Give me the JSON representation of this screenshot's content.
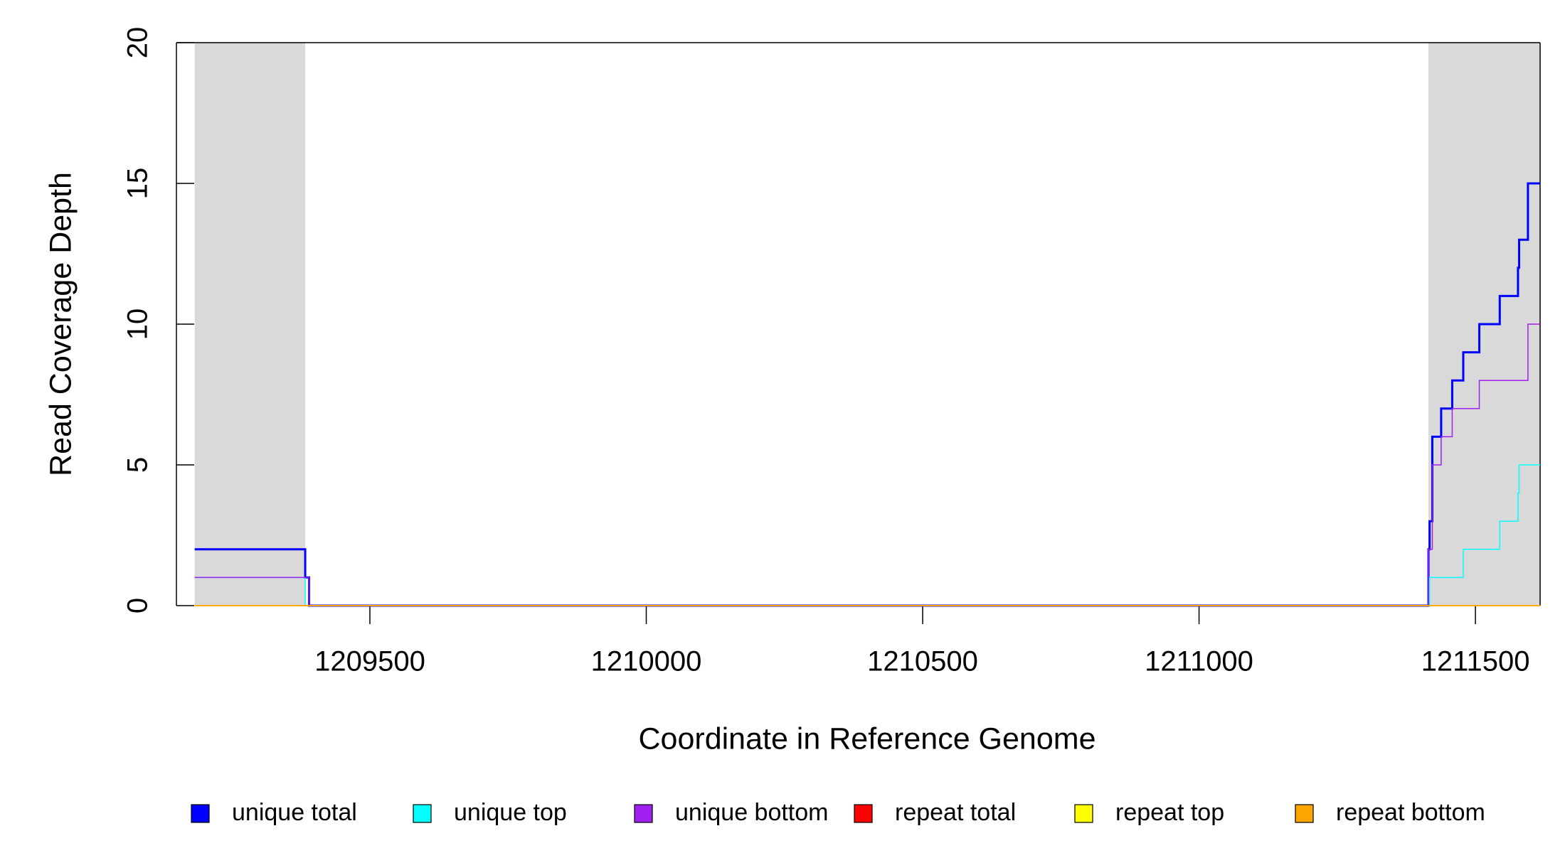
{
  "chart_data": {
    "type": "step-line",
    "x_label": "Coordinate in Reference Genome",
    "y_label": "Read Coverage Depth",
    "xlim": [
      1209150,
      1211617
    ],
    "ylim": [
      0,
      20
    ],
    "xticks": [
      1209500,
      1210000,
      1210500,
      1211000,
      1211500
    ],
    "yticks": [
      0,
      5,
      10,
      15,
      20
    ],
    "shaded_regions": [
      [
        1209183,
        1209383
      ],
      [
        1211415,
        1211617
      ]
    ],
    "shade_color": "#d9d9d9",
    "x": [
      1209183,
      1209383,
      1209390,
      1211415,
      1211417,
      1211420,
      1211422,
      1211438,
      1211458,
      1211478,
      1211507,
      1211544,
      1211577,
      1211579,
      1211595,
      1211617
    ],
    "series": [
      {
        "name": "unique total",
        "color": "#0000ff",
        "values": [
          2,
          1,
          0,
          2,
          3,
          3,
          6,
          7,
          8,
          9,
          10,
          11,
          12,
          13,
          15,
          15
        ]
      },
      {
        "name": "unique top",
        "color": "#00ffff",
        "values": [
          1,
          0,
          0,
          0,
          1,
          1,
          1,
          1,
          1,
          2,
          2,
          3,
          4,
          5,
          5,
          5
        ]
      },
      {
        "name": "unique bottom",
        "color": "#a020f0",
        "values": [
          1,
          1,
          0,
          2,
          2,
          2,
          5,
          6,
          7,
          7,
          8,
          8,
          8,
          8,
          10,
          10
        ]
      },
      {
        "name": "repeat total",
        "color": "#ff0000",
        "values": [
          0,
          0,
          0,
          0,
          0,
          0,
          0,
          0,
          0,
          0,
          0,
          0,
          0,
          0,
          0,
          0
        ]
      },
      {
        "name": "repeat top",
        "color": "#ffff00",
        "values": [
          0,
          0,
          0,
          0,
          0,
          0,
          0,
          0,
          0,
          0,
          0,
          0,
          0,
          0,
          0,
          0
        ]
      },
      {
        "name": "repeat bottom",
        "color": "#ffa500",
        "values": [
          0,
          0,
          0,
          0,
          0,
          0,
          0,
          0,
          0,
          0,
          0,
          0,
          0,
          0,
          0,
          0
        ]
      }
    ]
  }
}
